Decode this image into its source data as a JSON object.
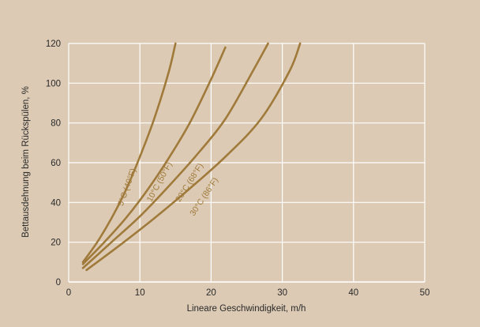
{
  "chart_data": {
    "type": "line",
    "title": "",
    "xlabel": "Lineare Geschwindigkeit, m/h",
    "ylabel": "Bettausdehnung beim Rückspülen, %",
    "xlim": [
      0,
      50
    ],
    "ylim": [
      0,
      120
    ],
    "x_ticks": [
      0,
      10,
      20,
      30,
      40,
      50
    ],
    "y_ticks": [
      0,
      20,
      40,
      60,
      80,
      100,
      120
    ],
    "grid": true,
    "colors": {
      "background": "#dccab4",
      "plot_area": "#dccab4",
      "grid": "#ffffff",
      "series": "#a07a3a",
      "text": "#2a2a2a"
    },
    "series": [
      {
        "name": "5°C (40°F)",
        "x": [
          2,
          4,
          6,
          8,
          10,
          12,
          14,
          15
        ],
        "y": [
          10,
          20,
          32,
          46,
          63,
          82,
          105,
          120
        ]
      },
      {
        "name": "10°C (50°F)",
        "x": [
          2,
          5,
          8,
          11,
          14,
          17,
          20,
          22
        ],
        "y": [
          9,
          20,
          32,
          46,
          62,
          80,
          102,
          118
        ]
      },
      {
        "name": "20°C (68°F)",
        "x": [
          2,
          6,
          10,
          14,
          18,
          22,
          26,
          28
        ],
        "y": [
          7,
          20,
          33,
          48,
          64,
          82,
          107,
          120
        ]
      },
      {
        "name": "30°C (86°F)",
        "x": [
          2.5,
          7,
          12,
          17,
          22,
          27,
          31,
          32.5
        ],
        "y": [
          6,
          18,
          32,
          47,
          63,
          82,
          106,
          120
        ]
      }
    ]
  }
}
